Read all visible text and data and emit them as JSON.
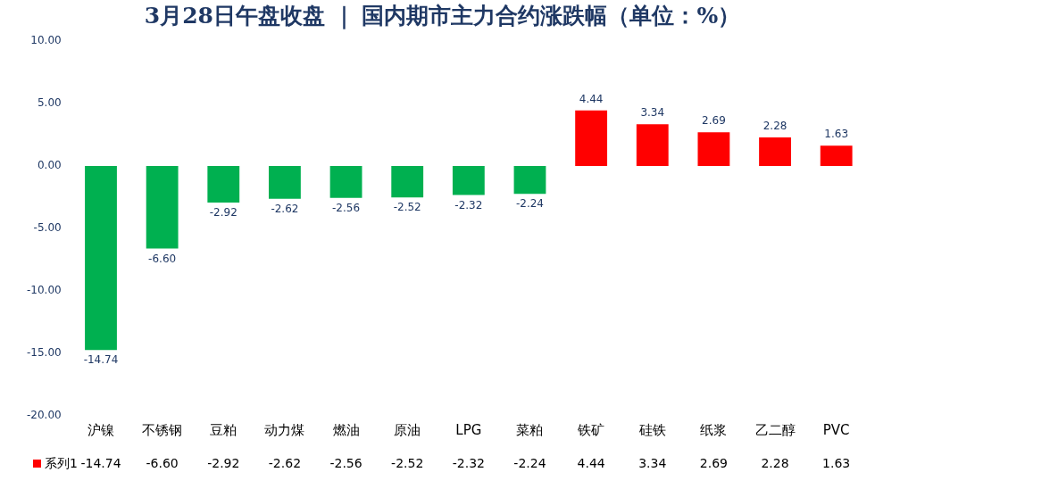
{
  "chart_data": {
    "type": "bar",
    "title": "3月28日午盘收盘 ｜ 国内期市主力合约涨跌幅（单位：%）",
    "categories": [
      "沪镍",
      "不锈钢",
      "豆粕",
      "动力煤",
      "燃油",
      "原油",
      "LPG",
      "菜粕",
      "铁矿",
      "硅铁",
      "纸浆",
      "乙二醇",
      "PVC"
    ],
    "series": [
      {
        "name": "系列1",
        "color": "#ff0000",
        "colors": [
          "#00b050",
          "#00b050",
          "#00b050",
          "#00b050",
          "#00b050",
          "#00b050",
          "#00b050",
          "#00b050",
          "#ff0000",
          "#ff0000",
          "#ff0000",
          "#ff0000",
          "#ff0000"
        ],
        "values": [
          -14.74,
          -6.6,
          -2.92,
          -2.62,
          -2.56,
          -2.52,
          -2.32,
          -2.24,
          4.44,
          3.34,
          2.69,
          2.28,
          1.63
        ],
        "value_labels": [
          "-14.74",
          "-6.60",
          "-2.92",
          "-2.62",
          "-2.56",
          "-2.52",
          "-2.32",
          "-2.24",
          "4.44",
          "3.34",
          "2.69",
          "2.28",
          "1.63"
        ]
      }
    ],
    "ylim": [
      -20,
      10
    ],
    "yticks": [
      {
        "value": -20,
        "label": "-20.00"
      },
      {
        "value": -15,
        "label": "-15.00"
      },
      {
        "value": -10,
        "label": "-10.00"
      },
      {
        "value": -5,
        "label": "-5.00"
      },
      {
        "value": 0,
        "label": "0.00"
      },
      {
        "value": 5,
        "label": "5.00"
      },
      {
        "value": 10,
        "label": "10.00"
      }
    ],
    "grid": false,
    "legend": "bottom",
    "data_labels": true
  }
}
